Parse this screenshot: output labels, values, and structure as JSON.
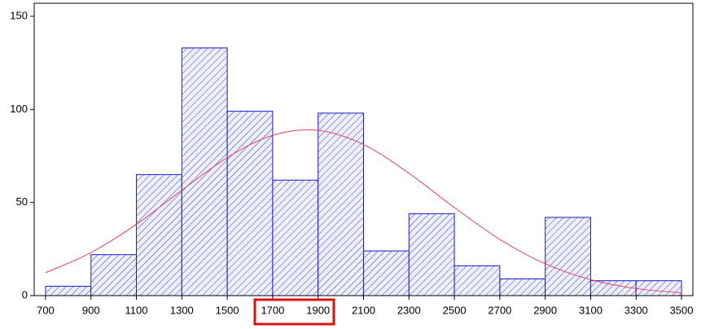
{
  "chart_data": {
    "type": "histogram",
    "bins": [
      700,
      900,
      1100,
      1300,
      1500,
      1700,
      1900,
      2100,
      2300,
      2500,
      2700,
      2900,
      3100,
      3300,
      3500
    ],
    "counts": [
      5,
      22,
      65,
      133,
      99,
      62,
      98,
      24,
      44,
      16,
      9,
      42,
      8,
      8
    ],
    "color": "#1a1acc",
    "curve": {
      "x": [
        700,
        900,
        1100,
        1300,
        1500,
        1700,
        1900,
        2100,
        2300,
        2500,
        2700,
        2900,
        3100,
        3300,
        3500
      ],
      "values": [
        12.3,
        23.1,
        38.3,
        56.6,
        74.1,
        86.1,
        88.7,
        81.1,
        65.7,
        47.3,
        30.2,
        17.1,
        8.6,
        3.8,
        1.5
      ],
      "color": "#e8405a"
    },
    "xlim": [
      650,
      3550
    ],
    "ylim": [
      0,
      157
    ],
    "xticks": [
      700,
      900,
      1100,
      1300,
      1500,
      1700,
      1900,
      2100,
      2300,
      2500,
      2700,
      2900,
      3100,
      3300,
      3500
    ],
    "yticks": [
      0,
      50,
      100,
      150
    ]
  }
}
